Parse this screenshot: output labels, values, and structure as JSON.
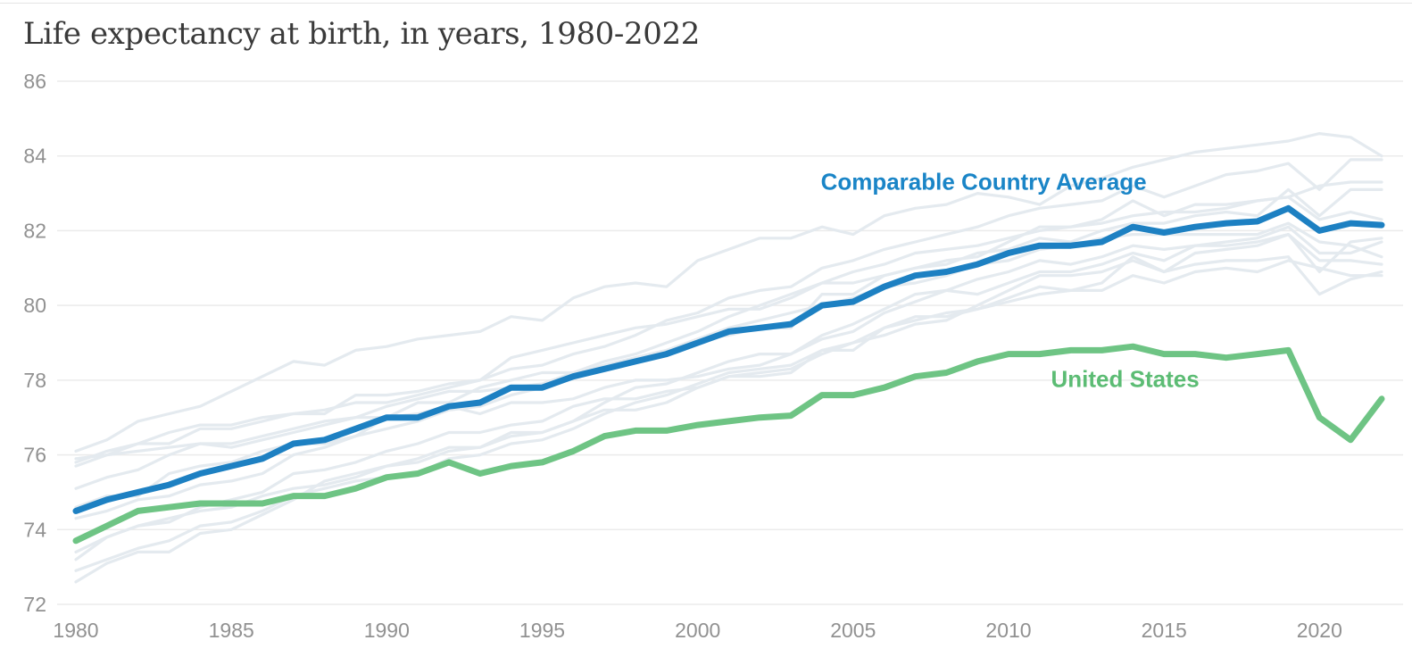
{
  "chart_data": {
    "type": "line",
    "title": "Life expectancy at birth, in years, 1980-2022",
    "xlabel": "",
    "ylabel": "",
    "xlim": [
      1980,
      2022
    ],
    "ylim": [
      72,
      86
    ],
    "x_ticks": [
      1980,
      1985,
      1990,
      1995,
      2000,
      2005,
      2010,
      2015,
      2020
    ],
    "y_ticks": [
      72,
      74,
      76,
      78,
      80,
      82,
      84,
      86
    ],
    "grid": true,
    "legend_position": "inline-annotations",
    "style": {
      "background": "#ffffff",
      "grid_color": "#ebebeb",
      "tick_color": "#919191",
      "title_color": "#3a3a3a",
      "blue_accent": "#1d80c2",
      "green_accent": "#6ec484",
      "faint_line_color": "#e4eaef"
    },
    "x": [
      1980,
      1981,
      1982,
      1983,
      1984,
      1985,
      1986,
      1987,
      1988,
      1989,
      1990,
      1991,
      1992,
      1993,
      1994,
      1995,
      1996,
      1997,
      1998,
      1999,
      2000,
      2001,
      2002,
      2003,
      2004,
      2005,
      2006,
      2007,
      2008,
      2009,
      2010,
      2011,
      2012,
      2013,
      2014,
      2015,
      2016,
      2017,
      2018,
      2019,
      2020,
      2021,
      2022
    ],
    "series": [
      {
        "id": "comparable-country-1",
        "label": "",
        "role": "background",
        "color": "#e4eaef",
        "width": 3.2,
        "values": [
          76.1,
          76.4,
          76.9,
          77.1,
          77.3,
          77.7,
          78.1,
          78.5,
          78.4,
          78.8,
          78.9,
          79.1,
          79.2,
          79.3,
          79.7,
          79.6,
          80.2,
          80.5,
          80.6,
          80.5,
          81.2,
          81.5,
          81.8,
          81.8,
          82.1,
          81.9,
          82.4,
          82.6,
          82.7,
          83.0,
          82.9,
          82.7,
          83.2,
          83.4,
          83.7,
          83.9,
          84.1,
          84.2,
          84.3,
          84.4,
          84.6,
          84.5,
          84.0
        ]
      },
      {
        "id": "comparable-country-2",
        "label": "",
        "role": "background",
        "color": "#e4eaef",
        "width": 3.2,
        "values": [
          75.7,
          76.0,
          76.3,
          76.3,
          76.7,
          76.7,
          76.9,
          77.1,
          77.2,
          77.4,
          77.4,
          77.6,
          77.8,
          78.0,
          78.3,
          78.4,
          78.7,
          78.9,
          79.2,
          79.6,
          79.8,
          80.2,
          80.4,
          80.5,
          81.0,
          81.2,
          81.5,
          81.7,
          81.9,
          82.1,
          82.4,
          82.6,
          82.7,
          82.8,
          83.2,
          82.9,
          83.2,
          83.5,
          83.6,
          83.8,
          83.1,
          83.9,
          83.9
        ]
      },
      {
        "id": "comparable-country-3",
        "label": "",
        "role": "background",
        "color": "#e4eaef",
        "width": 3.2,
        "values": [
          75.8,
          76.1,
          76.3,
          76.6,
          76.8,
          76.8,
          77.0,
          77.1,
          77.1,
          77.6,
          77.6,
          77.7,
          77.9,
          78.0,
          78.6,
          78.8,
          79.0,
          79.2,
          79.4,
          79.5,
          79.7,
          79.9,
          79.9,
          80.2,
          80.6,
          80.6,
          80.8,
          81.0,
          81.1,
          81.4,
          81.5,
          81.8,
          81.7,
          82.0,
          82.2,
          82.2,
          82.4,
          82.5,
          82.4,
          83.1,
          82.4,
          83.1,
          83.1
        ]
      },
      {
        "id": "comparable-country-4",
        "label": "",
        "role": "background",
        "color": "#e4eaef",
        "width": 3.2,
        "values": [
          75.9,
          76.0,
          76.1,
          76.2,
          76.3,
          76.3,
          76.5,
          76.7,
          76.9,
          77.0,
          77.0,
          77.1,
          77.3,
          77.1,
          77.4,
          77.4,
          77.5,
          77.8,
          78.0,
          78.0,
          78.1,
          78.3,
          78.4,
          78.7,
          79.2,
          79.5,
          79.9,
          80.3,
          80.4,
          80.7,
          80.9,
          81.2,
          81.1,
          81.3,
          81.6,
          81.5,
          81.6,
          81.7,
          81.8,
          82.1,
          81.4,
          81.4,
          81.7
        ]
      },
      {
        "id": "comparable-country-5",
        "label": "",
        "role": "background",
        "color": "#e4eaef",
        "width": 3.2,
        "values": [
          75.1,
          75.4,
          75.6,
          76.0,
          76.3,
          76.2,
          76.4,
          76.6,
          76.8,
          77.0,
          77.3,
          77.5,
          77.7,
          77.7,
          77.8,
          77.9,
          78.2,
          78.4,
          78.6,
          78.8,
          79.1,
          79.4,
          79.6,
          79.8,
          80.0,
          80.2,
          80.5,
          80.6,
          80.8,
          81.1,
          81.2,
          81.5,
          81.6,
          81.8,
          81.9,
          81.9,
          81.9,
          81.9,
          81.9,
          82.2,
          81.7,
          81.6,
          81.3
        ]
      },
      {
        "id": "comparable-country-6",
        "label": "",
        "role": "background",
        "color": "#e4eaef",
        "width": 3.2,
        "values": [
          74.6,
          74.9,
          74.9,
          75.5,
          75.7,
          75.8,
          76.1,
          76.3,
          76.3,
          76.5,
          77.0,
          77.4,
          77.4,
          77.8,
          78.0,
          78.2,
          78.2,
          78.5,
          78.7,
          79.0,
          79.3,
          79.7,
          80.0,
          80.3,
          80.6,
          80.9,
          81.1,
          81.4,
          81.5,
          81.6,
          81.8,
          82.0,
          82.1,
          82.2,
          82.4,
          82.5,
          82.5,
          82.6,
          82.8,
          82.9,
          83.2,
          83.3,
          83.3
        ]
      },
      {
        "id": "comparable-country-7",
        "label": "",
        "role": "background",
        "color": "#e4eaef",
        "width": 3.2,
        "values": [
          74.3,
          74.5,
          74.8,
          74.9,
          75.2,
          75.3,
          75.5,
          76.0,
          76.2,
          76.5,
          76.7,
          76.9,
          77.2,
          77.3,
          77.6,
          77.8,
          78.1,
          78.4,
          78.6,
          78.8,
          79.1,
          79.2,
          79.4,
          79.4,
          80.3,
          80.3,
          80.8,
          81.0,
          81.2,
          81.3,
          81.7,
          82.1,
          82.1,
          82.3,
          82.8,
          82.4,
          82.7,
          82.7,
          82.8,
          82.9,
          82.3,
          82.5,
          82.3
        ]
      },
      {
        "id": "comparable-country-8",
        "label": "",
        "role": "background",
        "color": "#e4eaef",
        "width": 3.2,
        "values": [
          73.4,
          73.8,
          74.1,
          74.2,
          74.6,
          74.8,
          75.0,
          75.5,
          75.6,
          75.8,
          76.1,
          76.3,
          76.6,
          76.6,
          76.8,
          76.9,
          77.3,
          77.5,
          77.5,
          77.7,
          77.8,
          78.1,
          78.1,
          78.2,
          78.8,
          78.8,
          79.4,
          79.7,
          79.7,
          79.9,
          80.2,
          80.5,
          80.4,
          80.6,
          81.3,
          80.9,
          81.4,
          81.5,
          81.6,
          81.9,
          80.9,
          81.7,
          81.8
        ]
      },
      {
        "id": "comparable-country-9",
        "label": "",
        "role": "background",
        "color": "#e4eaef",
        "width": 3.2,
        "values": [
          72.6,
          73.1,
          73.4,
          73.4,
          73.9,
          74.0,
          74.4,
          74.8,
          75.3,
          75.5,
          75.7,
          75.8,
          76.1,
          76.2,
          76.5,
          76.6,
          76.9,
          77.4,
          77.8,
          77.9,
          78.2,
          78.5,
          78.7,
          78.7,
          79.1,
          79.3,
          79.8,
          80.1,
          80.4,
          80.3,
          80.6,
          80.9,
          80.9,
          81.1,
          81.4,
          81.2,
          81.6,
          81.6,
          81.7,
          81.9,
          81.2,
          81.2,
          81.1
        ]
      },
      {
        "id": "comparable-country-10",
        "label": "",
        "role": "background",
        "color": "#e4eaef",
        "width": 3.2,
        "values": [
          72.9,
          73.2,
          73.5,
          73.7,
          74.1,
          74.2,
          74.5,
          74.9,
          75.1,
          75.3,
          75.4,
          75.5,
          75.9,
          76.0,
          76.3,
          76.4,
          76.7,
          77.1,
          77.4,
          77.6,
          77.9,
          78.2,
          78.3,
          78.4,
          78.8,
          79.0,
          79.4,
          79.6,
          79.8,
          79.9,
          80.1,
          80.3,
          80.4,
          80.4,
          80.8,
          80.6,
          80.9,
          81.0,
          80.9,
          81.2,
          81.0,
          80.8,
          80.8
        ]
      },
      {
        "id": "comparable-country-11",
        "label": "",
        "role": "background",
        "color": "#e4eaef",
        "width": 3.2,
        "values": [
          73.2,
          73.8,
          74.1,
          74.3,
          74.5,
          74.6,
          74.9,
          75.1,
          75.2,
          75.4,
          75.7,
          75.9,
          76.2,
          76.2,
          76.6,
          76.6,
          76.9,
          77.2,
          77.2,
          77.4,
          77.8,
          78.1,
          78.2,
          78.3,
          78.7,
          79.0,
          79.2,
          79.5,
          79.6,
          80.0,
          80.4,
          80.8,
          80.8,
          80.9,
          81.2,
          80.9,
          81.1,
          81.2,
          81.2,
          81.3,
          80.3,
          80.7,
          80.9
        ]
      },
      {
        "id": "united-states",
        "label": "United States",
        "role": "main",
        "color": "#6ec484",
        "width": 7,
        "values": [
          73.7,
          74.1,
          74.5,
          74.6,
          74.7,
          74.7,
          74.7,
          74.9,
          74.9,
          75.1,
          75.4,
          75.5,
          75.8,
          75.5,
          75.7,
          75.8,
          76.1,
          76.5,
          76.65,
          76.65,
          76.8,
          76.9,
          77.0,
          77.05,
          77.6,
          77.6,
          77.8,
          78.1,
          78.2,
          78.5,
          78.7,
          78.7,
          78.8,
          78.8,
          78.9,
          78.7,
          78.7,
          78.6,
          78.7,
          78.8,
          77.0,
          76.4,
          77.5
        ]
      },
      {
        "id": "comparable-country-average",
        "label": "Comparable Country Average",
        "role": "main",
        "color": "#1d80c2",
        "width": 7,
        "values": [
          74.5,
          74.8,
          75.0,
          75.2,
          75.5,
          75.7,
          75.9,
          76.3,
          76.4,
          76.7,
          77.0,
          77.0,
          77.3,
          77.4,
          77.8,
          77.8,
          78.1,
          78.3,
          78.5,
          78.7,
          79.0,
          79.3,
          79.4,
          79.5,
          80.0,
          80.1,
          80.5,
          80.8,
          80.9,
          81.1,
          81.4,
          81.6,
          81.6,
          81.7,
          82.1,
          81.95,
          82.1,
          82.2,
          82.25,
          82.6,
          82.0,
          82.2,
          82.15
        ]
      }
    ],
    "annotations": [
      {
        "id": "comparable-country-average",
        "text": "Comparable Country Average",
        "color": "#1a85c7",
        "x": 2009.2,
        "y": 83.1
      },
      {
        "id": "united-states",
        "text": "United States",
        "color": "#5cbc74",
        "x": 2013.75,
        "y": 77.82
      }
    ]
  }
}
